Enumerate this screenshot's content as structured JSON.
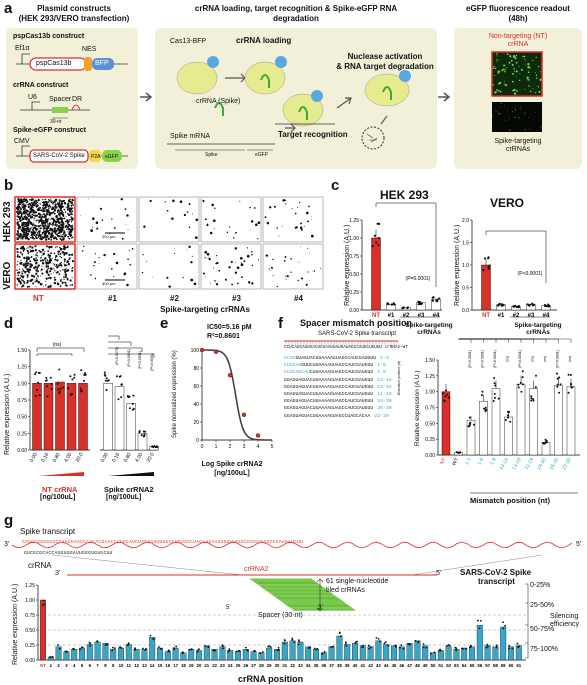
{
  "panel_labels": {
    "a": "a",
    "b": "b",
    "c": "c",
    "d": "d",
    "e": "e",
    "f": "f",
    "g": "g"
  },
  "panel_a": {
    "box1_title": "Plasmid constructs",
    "box1_subtitle": "(HEK 293/VERO transfection)",
    "pspcas13b_title": "pspCas13b construct",
    "ef1a": "Ef1α",
    "nes": "NES",
    "pspcas13b_label": "pspCas13b",
    "bfp": "BFP",
    "crrna_construct_title": "crRNA construct",
    "u6": "U6",
    "spacer": "Spacer",
    "dr": "DR",
    "nt30": "30-nt",
    "spike_construct_title": "Spike-eGFP construct",
    "cmv": "CMV",
    "sars_label": "SARS-CoV-2 Spike",
    "p2a": "P2A",
    "egfp": "eGFP",
    "box2_title": "crRNA loading, target recognition & Spike-eGFP RNA",
    "box2_title2": "degradation",
    "cas13_bfp": "Cas13-BFP",
    "crrna_loading": "crRNA loading",
    "crrna_spike": "crRNA (Spike)",
    "spike_mrna": "Spike mRNA",
    "spike_line": "Spike",
    "egfp_line": "eGFP",
    "target_recognition": "Target recognition",
    "nuclease": "Nuclease activation",
    "nuclease2": "& RNA target degradation",
    "box3_title": "eGFP fluorescence readout",
    "box3_subtitle": "(48h)",
    "nt_crrna": "Non-targeting (NT)",
    "nt_crrna2": "crRNA",
    "spike_targeting": "Spike-targeting",
    "spike_targeting2": "crRNAs"
  },
  "panel_b": {
    "row1": "HEK 293",
    "row2": "VERO",
    "scale1": "300 µm",
    "scale2": "300 µm",
    "cols": [
      "NT",
      "#1",
      "#2",
      "#3",
      "#4"
    ],
    "group_label": "Spike-targeting crRNAs"
  },
  "panel_c": {
    "title1": "HEK 293",
    "title2": "VERO",
    "ylabel": "Relative expression (A.U.)",
    "p1": "(P=0.0001)",
    "p2": "(P<0.0001)",
    "group_label": "Spike-targeting",
    "group_label2": "crRNAs",
    "yticks1": [
      "0.00",
      "0.25",
      "0.50",
      "0.75",
      "1.00",
      "1.25"
    ],
    "yticks2": [
      "0.0",
      "0.5",
      "1.0",
      "1.5",
      "2.0"
    ]
  },
  "panel_d": {
    "ylabel": "Relative expression (A.U.)",
    "yticks": [
      "0.00",
      "0.25",
      "0.50",
      "0.75",
      "1.00",
      "1.25",
      "1.50"
    ],
    "nt_label": "NT crRNA",
    "spike_label": "Spike crRNA2",
    "unit": "[ng/100uL]",
    "ns": "(ns)",
    "pvals": [
      "(P=0.0279)",
      "(P=0.0001)",
      "(P<0.0001)",
      "(P<0.0001)"
    ],
    "doses": [
      "0.00",
      "0.16",
      "0.80",
      "4.00",
      "20.0"
    ]
  },
  "panel_e": {
    "ic50": "IC50=5.16 pM",
    "r2": "R²=0.8601",
    "ylabel": "Spike normalized expression (%)",
    "xlabel": "Log Spike crRNA2",
    "xlabel2": "[ng/100uL]",
    "yticks": [
      "0",
      "20",
      "40",
      "60",
      "80",
      "100"
    ],
    "xticks": [
      "0",
      "1",
      "2",
      "3",
      "4",
      "5"
    ]
  },
  "panel_f": {
    "title": "Spacer mismatch position",
    "transcript": "SARS-CoV-2 Spike transcript",
    "top_seq": "GGAGUAGUACCUGAGAUUAAUACUAUCGGUACGACAAA",
    "crrna_wt": "CCUCAUCAUGGACUCUAAUUAUGAUAGCCAUGCUGUUU  crRNA2-WT",
    "mm_header": "Mismatch position (nt)",
    "seqs": [
      {
        "blue": "CCUC",
        "rest": "GUAGUACUUAAAAGUAGCCAUCGAUGUU",
        "pos": "1-3"
      },
      {
        "blue": "CCUCAU",
        "rest": "GUUCUUAAAAGUAGCCAUCGAUGUU",
        "pos": "1-6"
      },
      {
        "blue": "CCUCAUCAU",
        "rest": "CUUAAAAGUAGCCAUCGAUGUU",
        "pos": "1-9"
      },
      {
        "blue": "",
        "rest": "GGAGUAGUACUUAAAAGUAGCCAUCGAUGUU",
        "pos": "14-16"
      },
      {
        "blue": "",
        "rest": "GGAGUAGUACUUAAAAGUAGCCAUCGAUGUU",
        "pos": "13-18"
      },
      {
        "blue": "",
        "rest": "GGAGUAGUACUUAAAAGUAGCCAUCGAUGUU",
        "pos": "11-19"
      },
      {
        "blue": "",
        "rest": "GGAGUAGUACUUAAAAGUAGCCAUCGAUGUU",
        "pos": "24-30"
      },
      {
        "blue": "",
        "rest": "GGAGUAGUACUUAAAAGUAGCCAUCGAUGUU",
        "pos": "26-30"
      },
      {
        "blue": "",
        "rest": "GGAGUAGUACUUAAAAGUAGCCUAGCACAA",
        "pos": "22-30"
      }
    ],
    "ylabel": "Relative expression (A.U.)",
    "yticks": [
      "0.00",
      "0.25",
      "0.50",
      "0.75",
      "1.00",
      "1.25",
      "1.50"
    ],
    "xlabels": [
      "NT",
      "WT",
      "1-3",
      "1-6",
      "1-9",
      "14-16",
      "13-18",
      "11-19",
      "24-30",
      "26-30",
      "22-30"
    ],
    "pvals": [
      "(P<0.0001)",
      "(P<0.0001)",
      "(P<0.0001)",
      "(ns)",
      "(P<0.0001)",
      "(ns)",
      "(ns)",
      "(P<0.0001)",
      "(ns)"
    ],
    "xlabel": "Mismatch position (nt)"
  },
  "panel_g": {
    "spike_transcript": "Spike transcript",
    "three": "3'",
    "five": "5'",
    "long_seq": "CAGCCGGUGGUCCAACUAACCCACACGAACCUGUCAUCUAGAAUUUGUCGUGUAGCUACAAGAAUUGGUUGUCUAGGGGGUCCCAAGAUCUU",
    "crrna_seq": "GUCGCGCACCAGGUUGAUUGGGUGUGCUU",
    "crrna": "crRNA",
    "crrna2": "crRNA2",
    "sars_spike": "SARS-CoV-2 Spike",
    "sars_spike2": "transcript",
    "tiled": "61 single-nucleotide",
    "tiled2": "tiled crRNAs",
    "spacer": "Spacer (30-nt)",
    "ylabel": "Relative expression (A.U.)",
    "yticks": [
      "0.00",
      "0.25",
      "0.50",
      "0.75",
      "1.00",
      "1.25"
    ],
    "xlabel": "crRNA position",
    "nt": "NT",
    "bands": [
      "0-25%",
      "25-50%",
      "50-75%",
      "75-100%"
    ],
    "silencing": "Silencing",
    "silencing2": "efficiency"
  },
  "colors": {
    "red": "#d9302a",
    "teal": "#3aa6c5",
    "box": "#f2f0d8",
    "green": "#8bd14b",
    "yellow": "#f3d64a"
  },
  "chart_data": [
    {
      "type": "bar",
      "panel": "c-HEK293",
      "categories": [
        "NT",
        "#1",
        "#2",
        "#3",
        "#4"
      ],
      "values": [
        1.0,
        0.08,
        0.03,
        0.1,
        0.15
      ],
      "ylim": [
        0,
        1.25
      ],
      "ylabel": "Relative expression (A.U.)",
      "title": "HEK 293"
    },
    {
      "type": "bar",
      "panel": "c-VERO",
      "categories": [
        "NT",
        "#1",
        "#2",
        "#3",
        "#4"
      ],
      "values": [
        1.0,
        0.12,
        0.08,
        0.12,
        0.1
      ],
      "ylim": [
        0,
        2.0
      ],
      "ylabel": "Relative expression (A.U.)",
      "title": "VERO"
    },
    {
      "type": "bar",
      "panel": "d",
      "categories": [
        "0.00",
        "0.16",
        "0.80",
        "4.00",
        "20.0",
        "0.00",
        "0.16",
        "0.80",
        "4.00",
        "20.0"
      ],
      "values": [
        1.0,
        1.0,
        1.02,
        1.0,
        1.0,
        1.0,
        0.95,
        0.7,
        0.25,
        0.05
      ],
      "ylim": [
        0,
        1.5
      ],
      "ylabel": "Relative expression (A.U.)"
    },
    {
      "type": "line",
      "panel": "e",
      "x": [
        0,
        1,
        2,
        3,
        4
      ],
      "y": [
        100,
        98,
        72,
        28,
        5
      ],
      "xlim": [
        0,
        5
      ],
      "ylim": [
        0,
        100
      ],
      "xlabel": "Log Spike crRNA2 [ng/100uL]",
      "ylabel": "Spike normalized expression (%)"
    },
    {
      "type": "bar",
      "panel": "f",
      "categories": [
        "NT",
        "WT",
        "1-3",
        "1-6",
        "1-9",
        "14-16",
        "13-18",
        "11-19",
        "24-30",
        "26-30",
        "22-30"
      ],
      "values": [
        1.0,
        0.04,
        0.55,
        0.85,
        1.05,
        0.6,
        1.12,
        1.05,
        0.2,
        1.1,
        1.08
      ],
      "ylim": [
        0,
        1.5
      ],
      "ylabel": "Relative expression (A.U.)"
    },
    {
      "type": "bar",
      "panel": "g",
      "categories": [
        "NT",
        "1",
        "2",
        "3",
        "4",
        "5",
        "6",
        "7",
        "8",
        "9",
        "10",
        "11",
        "12",
        "13",
        "14",
        "15",
        "16",
        "17",
        "18",
        "19",
        "20",
        "21",
        "22",
        "23",
        "24",
        "25",
        "26",
        "27",
        "28",
        "29",
        "30",
        "31",
        "32",
        "33",
        "34",
        "35",
        "36",
        "37",
        "38",
        "39",
        "40",
        "41",
        "42",
        "43",
        "44",
        "45",
        "46",
        "47",
        "48",
        "49",
        "50",
        "51",
        "52",
        "53",
        "54",
        "55",
        "56",
        "57",
        "58",
        "59",
        "60",
        "61"
      ],
      "values": [
        1.0,
        0.05,
        0.22,
        0.14,
        0.18,
        0.2,
        0.26,
        0.3,
        0.28,
        0.18,
        0.2,
        0.26,
        0.18,
        0.18,
        0.38,
        0.2,
        0.14,
        0.2,
        0.12,
        0.18,
        0.16,
        0.24,
        0.18,
        0.22,
        0.16,
        0.14,
        0.18,
        0.14,
        0.12,
        0.2,
        0.18,
        0.3,
        0.32,
        0.3,
        0.22,
        0.18,
        0.12,
        0.22,
        0.4,
        0.26,
        0.28,
        0.24,
        0.22,
        0.32,
        0.26,
        0.24,
        0.22,
        0.28,
        0.32,
        0.24,
        0.12,
        0.16,
        0.22,
        0.18,
        0.2,
        0.22,
        0.58,
        0.24,
        0.22,
        0.55,
        0.22,
        0.24
      ],
      "ylim": [
        0,
        1.25
      ],
      "ylabel": "Relative expression (A.U.)",
      "xlabel": "crRNA position"
    }
  ]
}
